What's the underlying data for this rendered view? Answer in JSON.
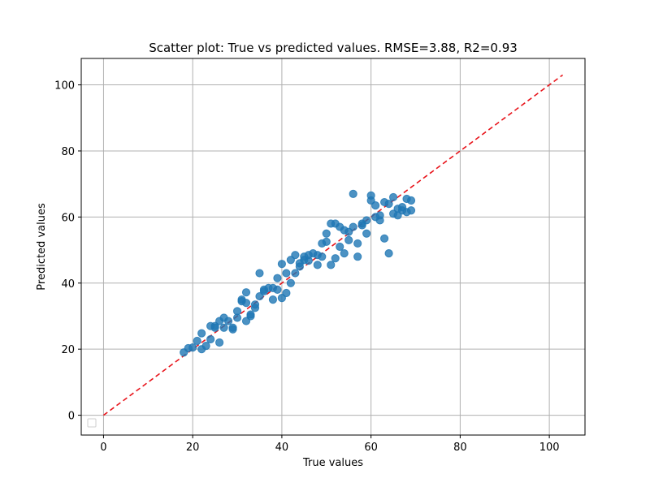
{
  "chart_data": {
    "type": "scatter",
    "title": "Scatter plot: True vs predicted values. RMSE=3.88, R2=0.93",
    "xlabel": "True values",
    "ylabel": "Predicted values",
    "xlim": [
      -5,
      108
    ],
    "ylim": [
      -6,
      108
    ],
    "xticks": [
      0,
      20,
      40,
      60,
      80,
      100
    ],
    "yticks": [
      0,
      20,
      40,
      60,
      80,
      100
    ],
    "grid": true,
    "legend": "lower-left",
    "colors": {
      "points": "#1f77b4",
      "reference_line": "#e8141b",
      "grid": "#b0b0b0"
    },
    "reference_line": {
      "x": [
        0,
        103
      ],
      "y": [
        0,
        103
      ],
      "style": "dashed"
    },
    "series": [
      {
        "points": [
          [
            18,
            19
          ],
          [
            19,
            20.3
          ],
          [
            20,
            20.5
          ],
          [
            21,
            22.5
          ],
          [
            22,
            20
          ],
          [
            22,
            24.8
          ],
          [
            23,
            21
          ],
          [
            24,
            23
          ],
          [
            24,
            27
          ],
          [
            25,
            27
          ],
          [
            25,
            26.5
          ],
          [
            26,
            22
          ],
          [
            26,
            28.5
          ],
          [
            27,
            26.5
          ],
          [
            27,
            29.5
          ],
          [
            28,
            28.5
          ],
          [
            29,
            26.5
          ],
          [
            29,
            26
          ],
          [
            30,
            29.5
          ],
          [
            30,
            31.5
          ],
          [
            31,
            35
          ],
          [
            31,
            34.5
          ],
          [
            32,
            37.2
          ],
          [
            32,
            28.5
          ],
          [
            32,
            34
          ],
          [
            33,
            30
          ],
          [
            33,
            30.5
          ],
          [
            34,
            32.5
          ],
          [
            34,
            33.5
          ],
          [
            35,
            36
          ],
          [
            35,
            43
          ],
          [
            36,
            37.5
          ],
          [
            36,
            38
          ],
          [
            37,
            38.5
          ],
          [
            38,
            35
          ],
          [
            38,
            38.5
          ],
          [
            39,
            38
          ],
          [
            39,
            41.5
          ],
          [
            40,
            35.5
          ],
          [
            40,
            45.8
          ],
          [
            41,
            37
          ],
          [
            41,
            43
          ],
          [
            42,
            47
          ],
          [
            42,
            40
          ],
          [
            43,
            43
          ],
          [
            43,
            48.5
          ],
          [
            44,
            46
          ],
          [
            44,
            45
          ],
          [
            45,
            48
          ],
          [
            45,
            47
          ],
          [
            46,
            46.8
          ],
          [
            46,
            48.5
          ],
          [
            47,
            49
          ],
          [
            48,
            45.5
          ],
          [
            48,
            48.5
          ],
          [
            49,
            52
          ],
          [
            49,
            48
          ],
          [
            50,
            55
          ],
          [
            50,
            52.5
          ],
          [
            51,
            58
          ],
          [
            51,
            45.5
          ],
          [
            52,
            58
          ],
          [
            52,
            47.5
          ],
          [
            53,
            57
          ],
          [
            53,
            51
          ],
          [
            54,
            56
          ],
          [
            54,
            49
          ],
          [
            55,
            55.5
          ],
          [
            55,
            53
          ],
          [
            56,
            67
          ],
          [
            56,
            57
          ],
          [
            57,
            52
          ],
          [
            57,
            48
          ],
          [
            58,
            58
          ],
          [
            58,
            57.5
          ],
          [
            59,
            59
          ],
          [
            59,
            55
          ],
          [
            60,
            66.5
          ],
          [
            60,
            65
          ],
          [
            61,
            63.5
          ],
          [
            61,
            60
          ],
          [
            62,
            59
          ],
          [
            62,
            60.5
          ],
          [
            63,
            64.5
          ],
          [
            63,
            53.5
          ],
          [
            64,
            64
          ],
          [
            64,
            49
          ],
          [
            65,
            66
          ],
          [
            65,
            61
          ],
          [
            66,
            60.5
          ],
          [
            66,
            62.5
          ],
          [
            67,
            63
          ],
          [
            67,
            62
          ],
          [
            68,
            65.5
          ],
          [
            68,
            61.5
          ],
          [
            69,
            65
          ],
          [
            69,
            62
          ]
        ]
      }
    ]
  }
}
